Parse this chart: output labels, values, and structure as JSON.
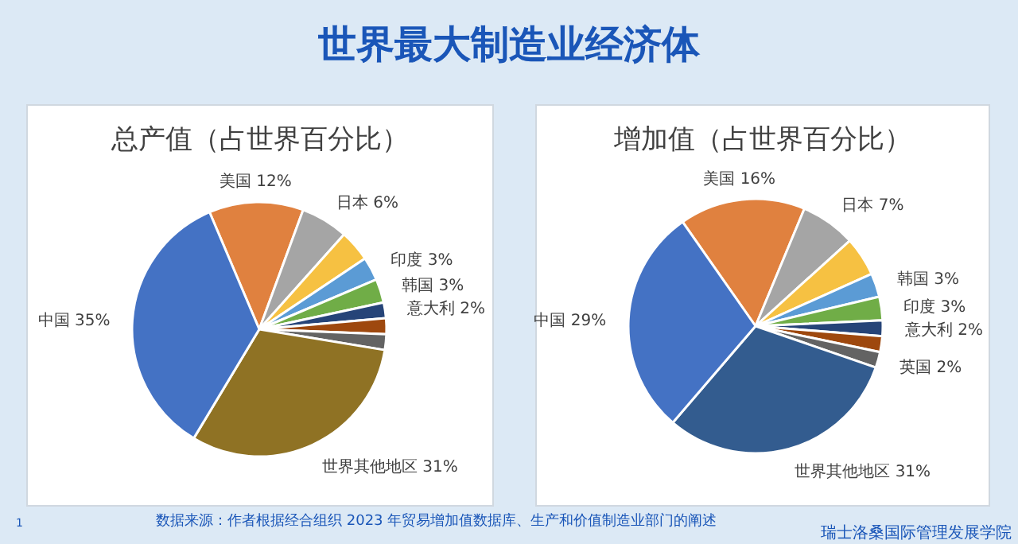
{
  "chart_data": [
    {
      "type": "other",
      "title": "世界最大制造业经济体",
      "annotations": [
        "数据来源：作者根据经合组织 2023 年贸易增加值数据库、生产和价值制造业部门的阐述",
        "1",
        "瑞士洛桑国际管理发展学院"
      ]
    },
    {
      "type": "pie",
      "title": "总产值（占世界百分比）",
      "categories": [
        "美国",
        "日本",
        null,
        "印度",
        "韩国",
        "意大利",
        null,
        null,
        "世界其他地区",
        "中国"
      ],
      "values": [
        12,
        6,
        4,
        3,
        3,
        2,
        2,
        2,
        31,
        35
      ],
      "value_labels": [
        "12%",
        "6%",
        null,
        "3%",
        "3%",
        "2%",
        null,
        null,
        "31%",
        "35%"
      ],
      "colors": [
        "#e0813f",
        "#a5a5a5",
        "#f6c142",
        "#5b9bd5",
        "#70ad47",
        "#264478",
        "#9e480e",
        "#636363",
        "#8f7224",
        "#4472c4"
      ]
    },
    {
      "type": "pie",
      "title": "增加值（占世界百分比）",
      "categories": [
        "美国",
        "日本",
        null,
        "韩国",
        "印度",
        "意大利",
        null,
        "英国",
        "世界其他地区",
        "中国"
      ],
      "values": [
        16,
        7,
        5,
        3,
        3,
        2,
        2,
        2,
        31,
        29
      ],
      "value_labels": [
        "16%",
        "7%",
        null,
        "3%",
        "3%",
        "2%",
        null,
        "2%",
        "31%",
        "29%"
      ],
      "colors": [
        "#e0813f",
        "#a5a5a5",
        "#f6c142",
        "#5b9bd5",
        "#70ad47",
        "#264478",
        "#9e480e",
        "#636363",
        "#335c8f",
        "#4472c4"
      ]
    }
  ]
}
